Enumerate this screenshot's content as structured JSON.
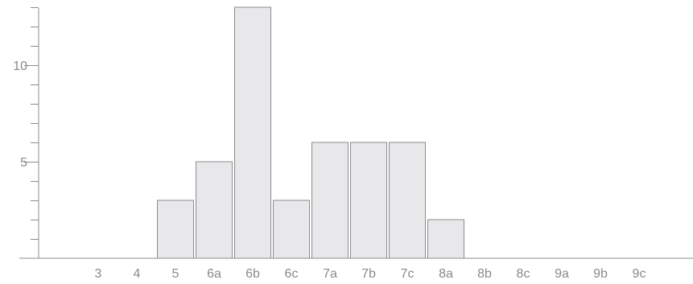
{
  "chart_data": {
    "type": "bar",
    "categories": [
      "3",
      "4",
      "5",
      "6a",
      "6b",
      "6c",
      "7a",
      "7b",
      "7c",
      "8a",
      "8b",
      "8c",
      "9a",
      "9b",
      "9c"
    ],
    "values": [
      0,
      0,
      3,
      5,
      13,
      3,
      6,
      6,
      6,
      2,
      0,
      0,
      0,
      0,
      0
    ],
    "ylim": [
      0,
      13
    ],
    "y_major_ticks": [
      5,
      10
    ],
    "y_tick_labels": [
      "5",
      "10"
    ],
    "y_minor_step": 1,
    "grid": false,
    "title": "",
    "xlabel": "",
    "ylabel": "",
    "colors": {
      "bar_fill": "#e8e8ea",
      "bar_stroke": "#8c8c8c",
      "axis": "#8c8c8c",
      "text": "#8a8a8a"
    }
  }
}
